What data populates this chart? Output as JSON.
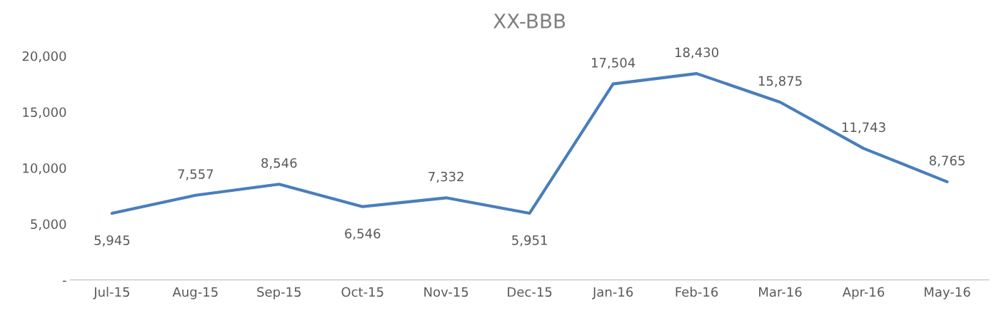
{
  "chart_data": {
    "type": "line",
    "title": "XX-BBB",
    "categories": [
      "Jul-15",
      "Aug-15",
      "Sep-15",
      "Oct-15",
      "Nov-15",
      "Dec-15",
      "Jan-16",
      "Feb-16",
      "Mar-16",
      "Apr-16",
      "May-16"
    ],
    "series": [
      {
        "color": "#4a7ebb",
        "values": [
          5945,
          7557,
          8546,
          6546,
          7332,
          5951,
          17504,
          18430,
          15875,
          11743,
          8765
        ],
        "value_labels": [
          "5,945",
          "7,557",
          "8,546",
          "6,546",
          "7,332",
          "5,951",
          "17,504",
          "18,430",
          "15,875",
          "11,743",
          "8,765"
        ]
      }
    ],
    "ylim": [
      0,
      20000
    ],
    "yticks": [
      {
        "value": 0,
        "label": "-"
      },
      {
        "value": 5000,
        "label": "5,000"
      },
      {
        "value": 10000,
        "label": "10,000"
      },
      {
        "value": 15000,
        "label": "15,000"
      },
      {
        "value": 20000,
        "label": "20,000"
      }
    ],
    "grid": false,
    "legend": false,
    "marker": "none",
    "line_style": "solid"
  }
}
